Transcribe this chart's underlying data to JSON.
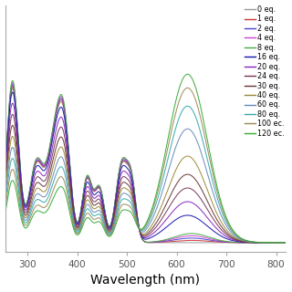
{
  "xlabel": "Wavelength (nm)",
  "xlim": [
    255,
    820
  ],
  "ylim": [
    -0.02,
    0.52
  ],
  "legend_entries": [
    "0 eq.",
    "1 eq.",
    "2 eq.",
    "4 eq.",
    "8 eq.",
    "16 eq.",
    "20 eq.",
    "24 eq.",
    "30 eq.",
    "40 eq.",
    "60 eq.",
    "80 eq.",
    "100 ec.",
    "120 ec."
  ],
  "legend_colors": [
    "#999999",
    "#cc3333",
    "#4444cc",
    "#cc44cc",
    "#44aa44",
    "#1111aa",
    "#8822bb",
    "#773355",
    "#663333",
    "#998833",
    "#6688bb",
    "#33aaaa",
    "#998855",
    "#33aa33"
  ],
  "background_color": "#ffffff",
  "xlabel_fontsize": 10
}
